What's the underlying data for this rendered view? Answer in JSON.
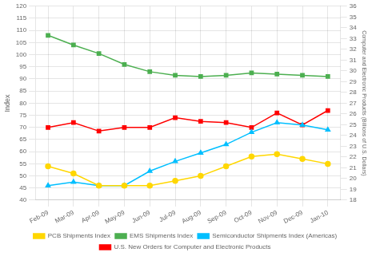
{
  "chart_data": {
    "type": "line",
    "categories": [
      "Feb-09",
      "Mar-09",
      "Apr-09",
      "May-09",
      "Jun-09",
      "Jul-09",
      "Aug-09",
      "Sep-09",
      "Oct-09",
      "Nov-09",
      "Dec-09",
      "Jan-10"
    ],
    "series": [
      {
        "name": "PCB Shipments Index",
        "color": "#FFD700",
        "marker": "circle",
        "values": [
          54,
          51,
          46,
          46,
          46,
          48,
          50,
          54,
          58,
          59,
          57,
          55
        ]
      },
      {
        "name": "EMS Shipments Index",
        "color": "#4CAF50",
        "marker": "square",
        "values": [
          108,
          104,
          100.5,
          96,
          93,
          91.5,
          91,
          91.5,
          92.5,
          92,
          91.5,
          91
        ]
      },
      {
        "name": "Semiconductor Shipments Index (Americas)",
        "color": "#00BFFF",
        "marker": "triangle",
        "values": [
          46,
          47.5,
          46,
          46,
          52,
          56,
          59.5,
          63,
          68,
          72,
          71,
          69
        ]
      },
      {
        "name": "U.S. New Orders for Computer and Electronic Products",
        "color": "#FF0000",
        "marker": "square",
        "values": [
          70,
          72,
          68.5,
          70,
          70,
          74,
          72.5,
          72,
          70,
          76,
          71,
          77
        ]
      }
    ],
    "ylabel": "Index",
    "ylim": [
      40,
      120
    ],
    "yticks": [
      40,
      45,
      50,
      55,
      60,
      65,
      70,
      75,
      80,
      85,
      90,
      95,
      100,
      105,
      110,
      115,
      120
    ],
    "y2label": "Computer and Electronic Products (Billions of U.S. Dollars)",
    "y2lim": [
      18,
      36
    ],
    "y2ticks": [
      18,
      19,
      20,
      21,
      22,
      23,
      24,
      25,
      26,
      27,
      28,
      29,
      30,
      31,
      32,
      33,
      34,
      35,
      36
    ],
    "grid": true,
    "legend": "bottom"
  }
}
